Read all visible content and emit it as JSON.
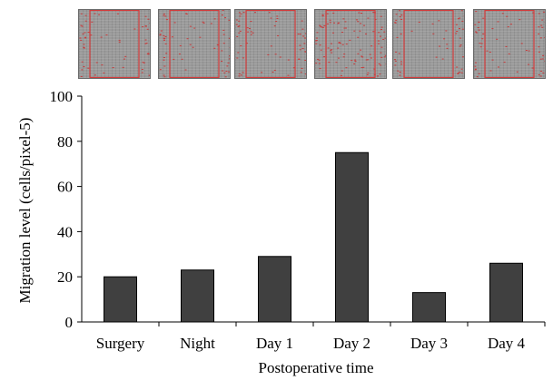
{
  "thumbnails": {
    "count": 6,
    "boundary_color": "#d23c3c",
    "cell_color": "#c83a3a",
    "items": [
      {
        "name": "surgery-micrograph",
        "density": 0.2
      },
      {
        "name": "night-micrograph",
        "density": 0.23
      },
      {
        "name": "day1-micrograph",
        "density": 0.29
      },
      {
        "name": "day2-micrograph",
        "density": 0.75
      },
      {
        "name": "day3-micrograph",
        "density": 0.13
      },
      {
        "name": "day4-micrograph",
        "density": 0.26
      }
    ]
  },
  "chart_data": {
    "type": "bar",
    "categories": [
      "Surgery",
      "Night",
      "Day 1",
      "Day 2",
      "Day 3",
      "Day 4"
    ],
    "values": [
      20,
      23,
      29,
      75,
      13,
      26
    ],
    "ylim": [
      0,
      100
    ],
    "yticks": [
      0,
      20,
      40,
      60,
      80,
      100
    ],
    "ylabel": "Migration level (cells/pixel-5)",
    "xlabel": "Postoperative time",
    "title": "",
    "bar_color": "#404040",
    "grid": false,
    "legend": false
  }
}
